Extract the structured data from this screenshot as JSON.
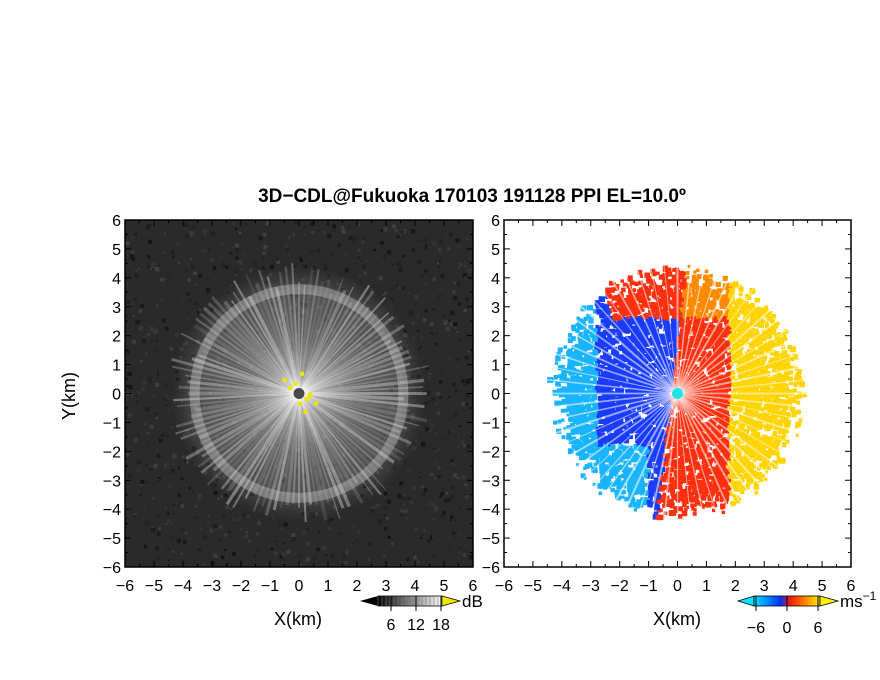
{
  "title": "3D−CDL@Fukuoka 170103 191128 PPI EL=10.0º",
  "chart_data": [
    {
      "type": "heatmap",
      "panel": "reflectivity",
      "xlabel": "X(km)",
      "ylabel": "Y(km)",
      "xlim": [
        -6,
        6
      ],
      "ylim": [
        -6,
        6
      ],
      "x_ticks": [
        "−6",
        "−5",
        "−4",
        "−3",
        "−2",
        "−1",
        "0",
        "1",
        "2",
        "3",
        "4",
        "5",
        "6"
      ],
      "y_ticks": [
        "−6",
        "−5",
        "−4",
        "−3",
        "−2",
        "−1",
        "0",
        "1",
        "2",
        "3",
        "4",
        "5",
        "6"
      ],
      "colorbar": {
        "unit": "dB",
        "ticks": [
          "6",
          "12",
          "18"
        ],
        "colors": [
          "#000000",
          "#ffffff"
        ],
        "extend_high_color": "#f2e600"
      },
      "echo_radius_km": 4.4,
      "ring_radius_km": 3.6
    },
    {
      "type": "heatmap",
      "panel": "doppler_velocity",
      "xlabel": "X(km)",
      "xlim": [
        -6,
        6
      ],
      "ylim": [
        -6,
        6
      ],
      "x_ticks": [
        "−6",
        "−5",
        "−4",
        "−3",
        "−2",
        "−1",
        "0",
        "1",
        "2",
        "3",
        "4",
        "5",
        "6"
      ],
      "y_ticks": [
        "−6",
        "−5",
        "−4",
        "−3",
        "−2",
        "−1",
        "0",
        "1",
        "2",
        "3",
        "4",
        "5",
        "6"
      ],
      "colorbar": {
        "unit": "ms",
        "unit_exponent": "−1",
        "ticks": [
          "−6",
          "0",
          "6"
        ],
        "colors": [
          "#00e5ff",
          "#0030ff",
          "#ff1a00",
          "#ffee00"
        ],
        "extend_low_color": "#00e5ff",
        "extend_high_color": "#ffee00"
      },
      "echo_radius_km": 4.4,
      "colors": {
        "west_negative": "#1a3cff",
        "east_positive": "#ff3010",
        "far_east": "#ffd400",
        "north": "#ff8a00",
        "southwest": "#18b4ff"
      }
    }
  ]
}
